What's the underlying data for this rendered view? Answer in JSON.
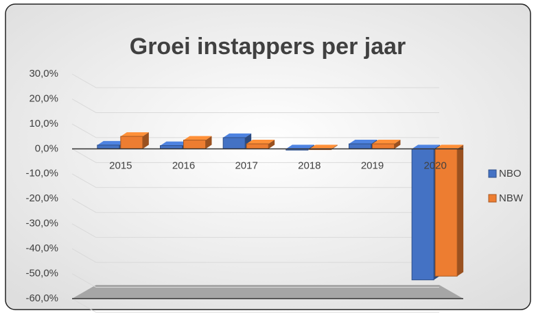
{
  "chart_data": {
    "type": "bar",
    "title": "Groei instappers per jaar",
    "categories": [
      "2015",
      "2016",
      "2017",
      "2018",
      "2019",
      "2020"
    ],
    "series": [
      {
        "name": "NBO",
        "color": "#4472c4",
        "values": [
          1.5,
          1.3,
          4.5,
          -0.5,
          2,
          -52.5
        ]
      },
      {
        "name": "NBW",
        "color": "#ed7d31",
        "values": [
          5,
          3.5,
          2,
          -0.3,
          2,
          -51
        ]
      }
    ],
    "ylim": [
      -60,
      30
    ],
    "yticks": [
      {
        "value": -60,
        "label": "-60,0%"
      },
      {
        "value": -50,
        "label": "-50,0%"
      },
      {
        "value": -40,
        "label": "-40,0%"
      },
      {
        "value": -30,
        "label": "-30,0%"
      },
      {
        "value": -20,
        "label": "-20,0%"
      },
      {
        "value": -10,
        "label": "-10,0%"
      },
      {
        "value": 0,
        "label": "0,0%"
      },
      {
        "value": 10,
        "label": "10,0%"
      },
      {
        "value": 20,
        "label": "20,0%"
      },
      {
        "value": 30,
        "label": "30,0%"
      }
    ],
    "grid": true,
    "legend": "right"
  }
}
